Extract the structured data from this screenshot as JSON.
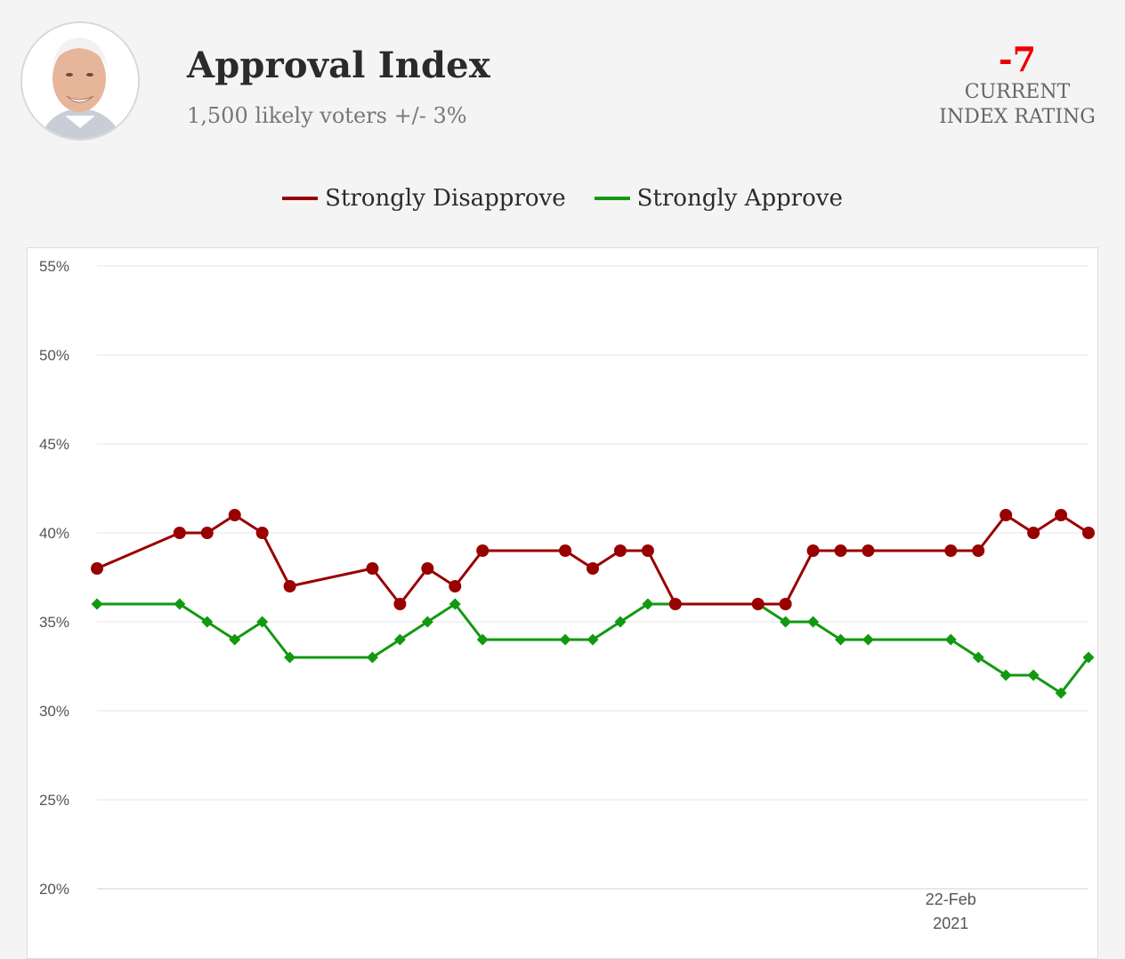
{
  "header": {
    "title": "Approval Index",
    "subtitle": "1,500 likely voters +/- 3%",
    "avatar_icon": "portrait-photo"
  },
  "index": {
    "value": "-7",
    "label": "CURRENT INDEX RATING",
    "color": "#ee0000"
  },
  "legend": [
    {
      "name": "Strongly Disapprove",
      "color": "#990000"
    },
    {
      "name": "Strongly Approve",
      "color": "#119911"
    }
  ],
  "chart_data": {
    "type": "line",
    "x": [
      0,
      3,
      4,
      5,
      6,
      7,
      10,
      11,
      12,
      13,
      14,
      17,
      18,
      19,
      20,
      21,
      24,
      25,
      26,
      27,
      28,
      31,
      32,
      33,
      34,
      35,
      36
    ],
    "x_tick_label": {
      "line1": "22-Feb",
      "line2": "2021",
      "position": 31
    },
    "yticks": [
      "20%",
      "25%",
      "30%",
      "35%",
      "40%",
      "45%",
      "50%",
      "55%"
    ],
    "ylim": [
      20,
      55
    ],
    "series": [
      {
        "name": "Strongly Disapprove",
        "color": "#990000",
        "marker": "circle",
        "values": [
          38,
          40,
          40,
          41,
          40,
          37,
          38,
          36,
          38,
          37,
          39,
          39,
          38,
          39,
          39,
          36,
          36,
          36,
          39,
          39,
          39,
          39,
          39,
          41,
          40,
          41,
          40
        ]
      },
      {
        "name": "Strongly Approve",
        "color": "#119911",
        "marker": "diamond",
        "values": [
          36,
          36,
          35,
          34,
          35,
          33,
          33,
          34,
          35,
          36,
          34,
          34,
          34,
          35,
          36,
          36,
          36,
          35,
          35,
          34,
          34,
          34,
          33,
          32,
          32,
          31,
          33
        ]
      }
    ]
  }
}
